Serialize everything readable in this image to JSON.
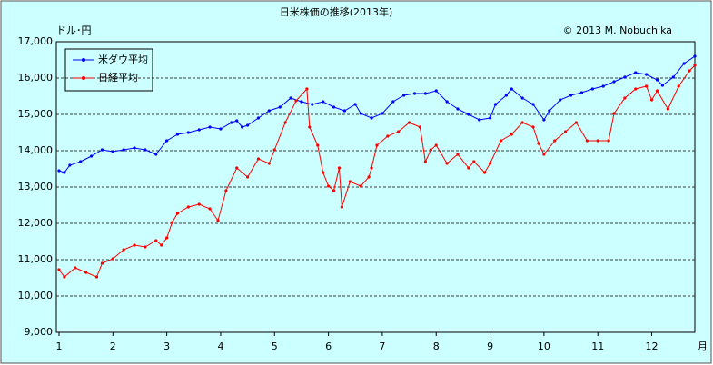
{
  "chart_data": {
    "type": "line",
    "title": "日米株価の推移(2013年)",
    "y_label": "ドル･円",
    "x_label": "月",
    "credit": "© 2013 M. Nobuchika",
    "grid": true,
    "legend": "upper left",
    "xlim": [
      0.95,
      12.8
    ],
    "xticks": [
      1,
      2,
      3,
      4,
      5,
      6,
      7,
      8,
      9,
      10,
      11,
      12
    ],
    "ylim": [
      9000,
      17000
    ],
    "yticks": [
      {
        "value": 9000,
        "label": "9,000"
      },
      {
        "value": 10000,
        "label": "10,000"
      },
      {
        "value": 11000,
        "label": "11,000"
      },
      {
        "value": 12000,
        "label": "12,000"
      },
      {
        "value": 13000,
        "label": "13,000"
      },
      {
        "value": 14000,
        "label": "14,000"
      },
      {
        "value": 15000,
        "label": "15,000"
      },
      {
        "value": 16000,
        "label": "16,000"
      },
      {
        "value": 17000,
        "label": "17,000"
      }
    ],
    "series": [
      {
        "name": "米ダウ平均",
        "color": "#0000ff",
        "x": [
          1.0,
          1.1,
          1.2,
          1.4,
          1.6,
          1.8,
          2.0,
          2.2,
          2.4,
          2.6,
          2.8,
          3.0,
          3.2,
          3.4,
          3.6,
          3.8,
          4.0,
          4.2,
          4.3,
          4.4,
          4.5,
          4.7,
          4.9,
          5.1,
          5.3,
          5.5,
          5.7,
          5.9,
          6.1,
          6.3,
          6.5,
          6.6,
          6.8,
          7.0,
          7.2,
          7.4,
          7.6,
          7.8,
          8.0,
          8.2,
          8.4,
          8.6,
          8.8,
          9.0,
          9.1,
          9.3,
          9.4,
          9.6,
          9.8,
          10.0,
          10.1,
          10.3,
          10.5,
          10.7,
          10.9,
          11.1,
          11.3,
          11.5,
          11.7,
          11.9,
          12.1,
          12.2,
          12.4,
          12.6,
          12.8
        ],
        "values": [
          13450,
          13400,
          13600,
          13700,
          13850,
          14025,
          13975,
          14025,
          14075,
          14025,
          13900,
          14275,
          14450,
          14500,
          14575,
          14650,
          14600,
          14775,
          14825,
          14650,
          14700,
          14900,
          15100,
          15200,
          15450,
          15350,
          15275,
          15350,
          15200,
          15100,
          15275,
          15025,
          14900,
          15025,
          15350,
          15525,
          15575,
          15575,
          15650,
          15350,
          15150,
          15000,
          14850,
          14900,
          15275,
          15525,
          15700,
          15450,
          15275,
          14850,
          15100,
          15400,
          15525,
          15600,
          15700,
          15775,
          15900,
          16025,
          16150,
          16100,
          15950,
          15800,
          16025,
          16400,
          16600
        ]
      },
      {
        "name": "日経平均",
        "color": "#ff0000",
        "x": [
          1.0,
          1.1,
          1.3,
          1.5,
          1.7,
          1.8,
          2.0,
          2.2,
          2.4,
          2.6,
          2.8,
          2.9,
          3.0,
          3.1,
          3.2,
          3.4,
          3.6,
          3.8,
          3.95,
          4.1,
          4.3,
          4.5,
          4.7,
          4.9,
          5.0,
          5.2,
          5.4,
          5.6,
          5.65,
          5.8,
          5.9,
          6.0,
          6.1,
          6.2,
          6.25,
          6.4,
          6.6,
          6.75,
          6.8,
          6.9,
          7.1,
          7.3,
          7.5,
          7.7,
          7.8,
          7.9,
          8.0,
          8.2,
          8.4,
          8.6,
          8.7,
          8.9,
          9.0,
          9.2,
          9.4,
          9.6,
          9.8,
          9.9,
          10.0,
          10.2,
          10.4,
          10.6,
          10.8,
          11.0,
          11.2,
          11.3,
          11.5,
          11.7,
          11.9,
          12.0,
          12.1,
          12.3,
          12.5,
          12.7,
          12.8
        ],
        "values": [
          10725,
          10525,
          10775,
          10650,
          10525,
          10900,
          11025,
          11275,
          11400,
          11350,
          11525,
          11400,
          11600,
          12025,
          12275,
          12450,
          12525,
          12400,
          12075,
          12900,
          13525,
          13275,
          13775,
          13650,
          14025,
          14775,
          15375,
          15700,
          14650,
          14150,
          13400,
          13025,
          12900,
          13525,
          12450,
          13150,
          13025,
          13275,
          13525,
          14150,
          14400,
          14525,
          14775,
          14650,
          13700,
          14025,
          14150,
          13650,
          13900,
          13525,
          13700,
          13400,
          13650,
          14275,
          14450,
          14775,
          14650,
          14200,
          13900,
          14275,
          14525,
          14775,
          14275,
          14275,
          14275,
          15025,
          15450,
          15700,
          15775,
          15400,
          15650,
          15150,
          15775,
          16200,
          16350
        ]
      }
    ]
  }
}
